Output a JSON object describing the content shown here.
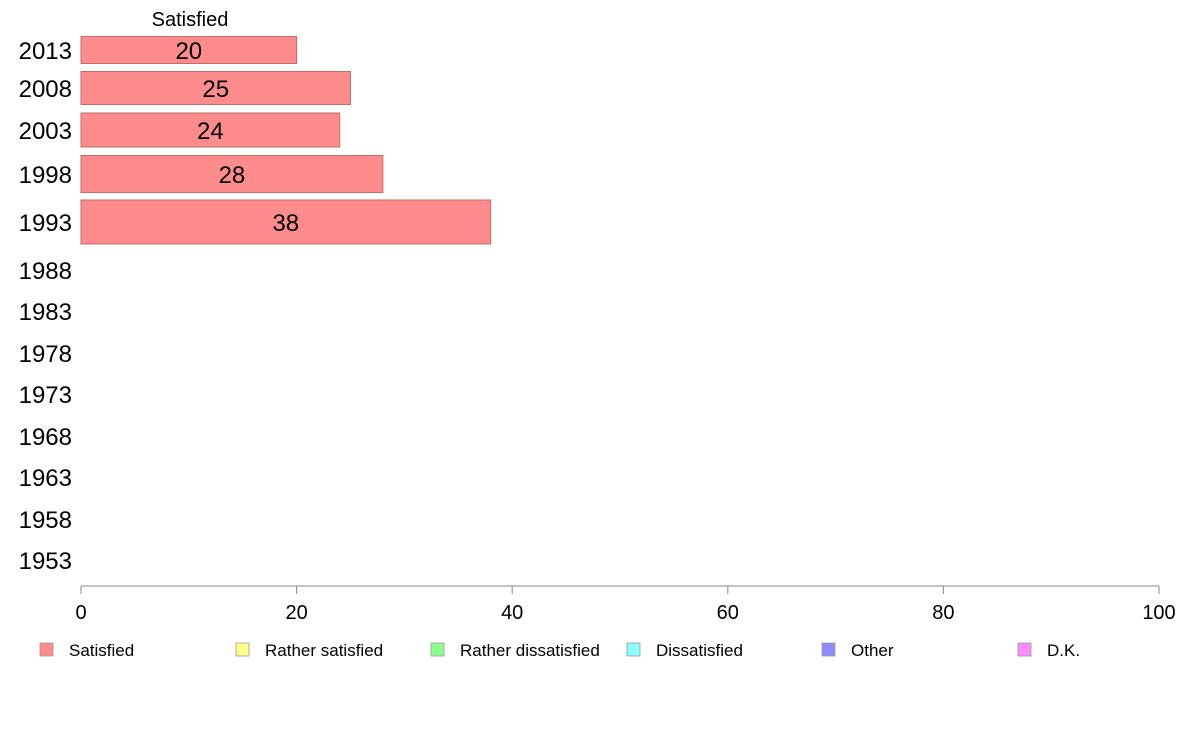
{
  "chart_data": {
    "type": "bar",
    "orientation": "horizontal",
    "stacked": true,
    "categories": [
      "2013",
      "2008",
      "2003",
      "1998",
      "1993",
      "1988",
      "1983",
      "1978",
      "1973",
      "1968",
      "1963",
      "1958",
      "1953"
    ],
    "series": [
      {
        "name": "Satisfied",
        "color": "#ff8c8c",
        "values": [
          20,
          25,
          24,
          28,
          38,
          null,
          null,
          null,
          null,
          null,
          null,
          null,
          null
        ]
      },
      {
        "name": "Rather satisfied",
        "color": "#ffff8c",
        "values": [
          null,
          null,
          null,
          null,
          null,
          null,
          null,
          null,
          null,
          null,
          null,
          null,
          null
        ]
      },
      {
        "name": "Rather dissatisfied",
        "color": "#8cff8c",
        "values": [
          null,
          null,
          null,
          null,
          null,
          null,
          null,
          null,
          null,
          null,
          null,
          null,
          null
        ]
      },
      {
        "name": "Dissatisfied",
        "color": "#8cffff",
        "values": [
          null,
          null,
          null,
          null,
          null,
          null,
          null,
          null,
          null,
          null,
          null,
          null,
          null
        ]
      },
      {
        "name": "Other",
        "color": "#8c8cff",
        "values": [
          null,
          null,
          null,
          null,
          null,
          null,
          null,
          null,
          null,
          null,
          null,
          null,
          null
        ]
      },
      {
        "name": "D.K.",
        "color": "#ff8cff",
        "values": [
          null,
          null,
          null,
          null,
          null,
          null,
          null,
          null,
          null,
          null,
          null,
          null,
          null
        ]
      }
    ],
    "column_header": "Satisfied",
    "xlim": [
      0,
      100
    ],
    "xticks": [
      0,
      20,
      40,
      60,
      80,
      100
    ],
    "grid": false,
    "legend_position": "bottom"
  }
}
